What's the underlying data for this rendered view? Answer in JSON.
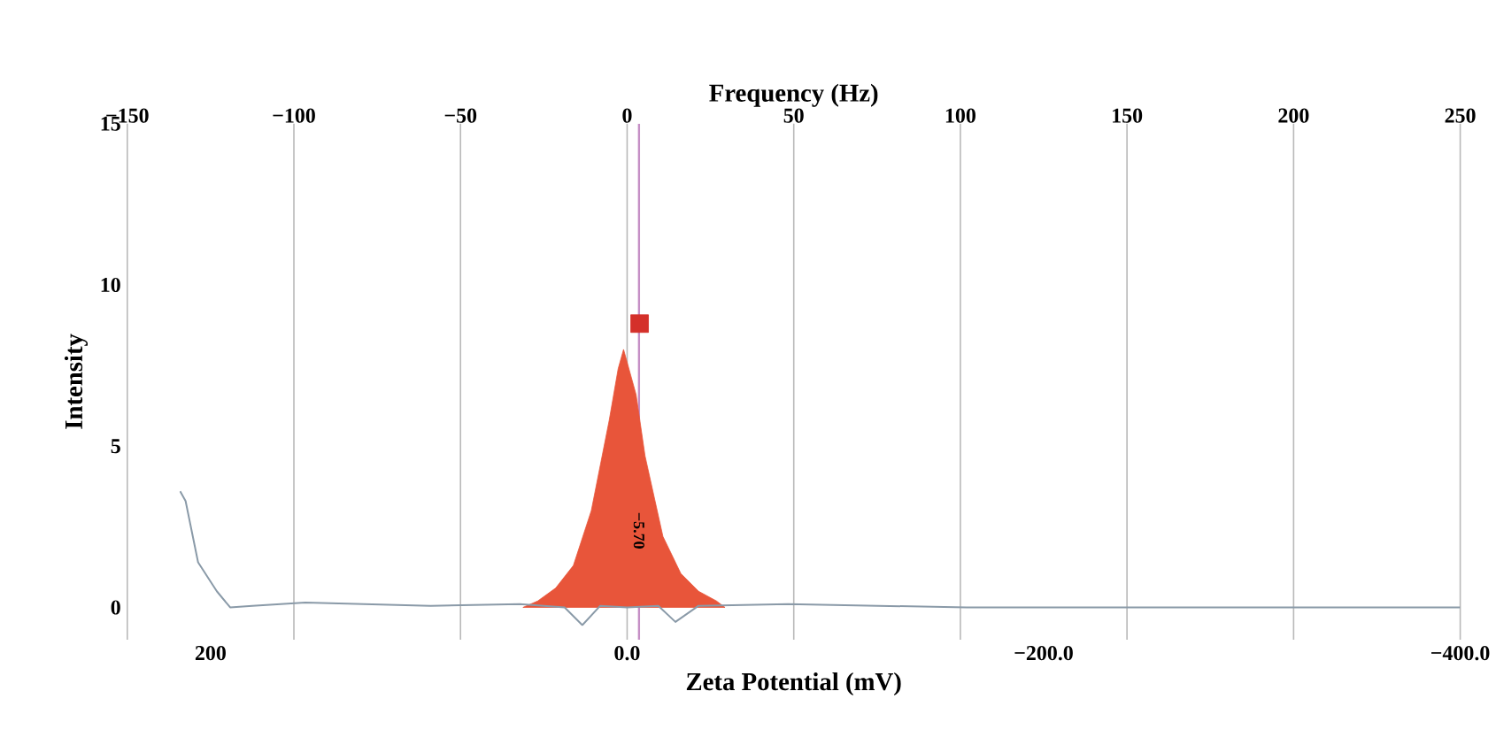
{
  "chart_data": {
    "type": "line",
    "xlabel": "Zeta Potential (mV)",
    "ylabel": "Intensity",
    "x2label": "Frequency (Hz)",
    "xlim": [
      240,
      -400
    ],
    "xticks": [
      200,
      {
        "value": 0,
        "label": "0.0"
      },
      {
        "value": -200,
        "label": "−200.0"
      },
      {
        "value": -400,
        "label": "−400.0"
      }
    ],
    "x2lim": [
      -150,
      250
    ],
    "x2ticks": [
      {
        "value": -150,
        "label": "−150"
      },
      {
        "value": -100,
        "label": "−100"
      },
      {
        "value": -50,
        "label": "−50"
      },
      0,
      50,
      100,
      150,
      200,
      250
    ],
    "ylim": [
      -1,
      15
    ],
    "yticks": [
      0,
      5,
      10,
      15
    ],
    "grid": "x",
    "series": [
      {
        "type": "area",
        "color": "#e8553a",
        "x": [
          50,
          42.9,
          34.3,
          25.8,
          17.2,
          8.6,
          4.3,
          1.7,
          -4.3,
          -8.6,
          -17.2,
          -25.8,
          -34.3,
          -42.9,
          -47
        ],
        "values": [
          0,
          0.2,
          0.6,
          1.3,
          3,
          5.8,
          7.4,
          8,
          6.6,
          4.7,
          2.2,
          1.05,
          0.5,
          0.2,
          0
        ]
      },
      {
        "color": "#8a9aa8",
        "x": [
          214.6,
          212,
          206,
          197,
          190.6,
          180,
          154.5,
          94.4,
          51.5,
          30,
          21.5,
          12.9,
          0,
          -15,
          -23.2,
          -34.3,
          -77.3,
          -163,
          -400
        ],
        "values": [
          3.6,
          3.3,
          1.4,
          0.5,
          0,
          0.05,
          0.15,
          0.05,
          0.1,
          0,
          -0.55,
          0.05,
          0,
          0.05,
          -0.45,
          0.05,
          0.1,
          0,
          0
        ]
      },
      {
        "type": "scatter",
        "color": "#d4302a",
        "marker": "square",
        "x": [
          -6
        ],
        "values": [
          8.8
        ]
      }
    ],
    "ref_lines": [
      {
        "axis": "x",
        "value": -5.7,
        "label": "−5.70",
        "color": "#c58fc5"
      }
    ]
  }
}
